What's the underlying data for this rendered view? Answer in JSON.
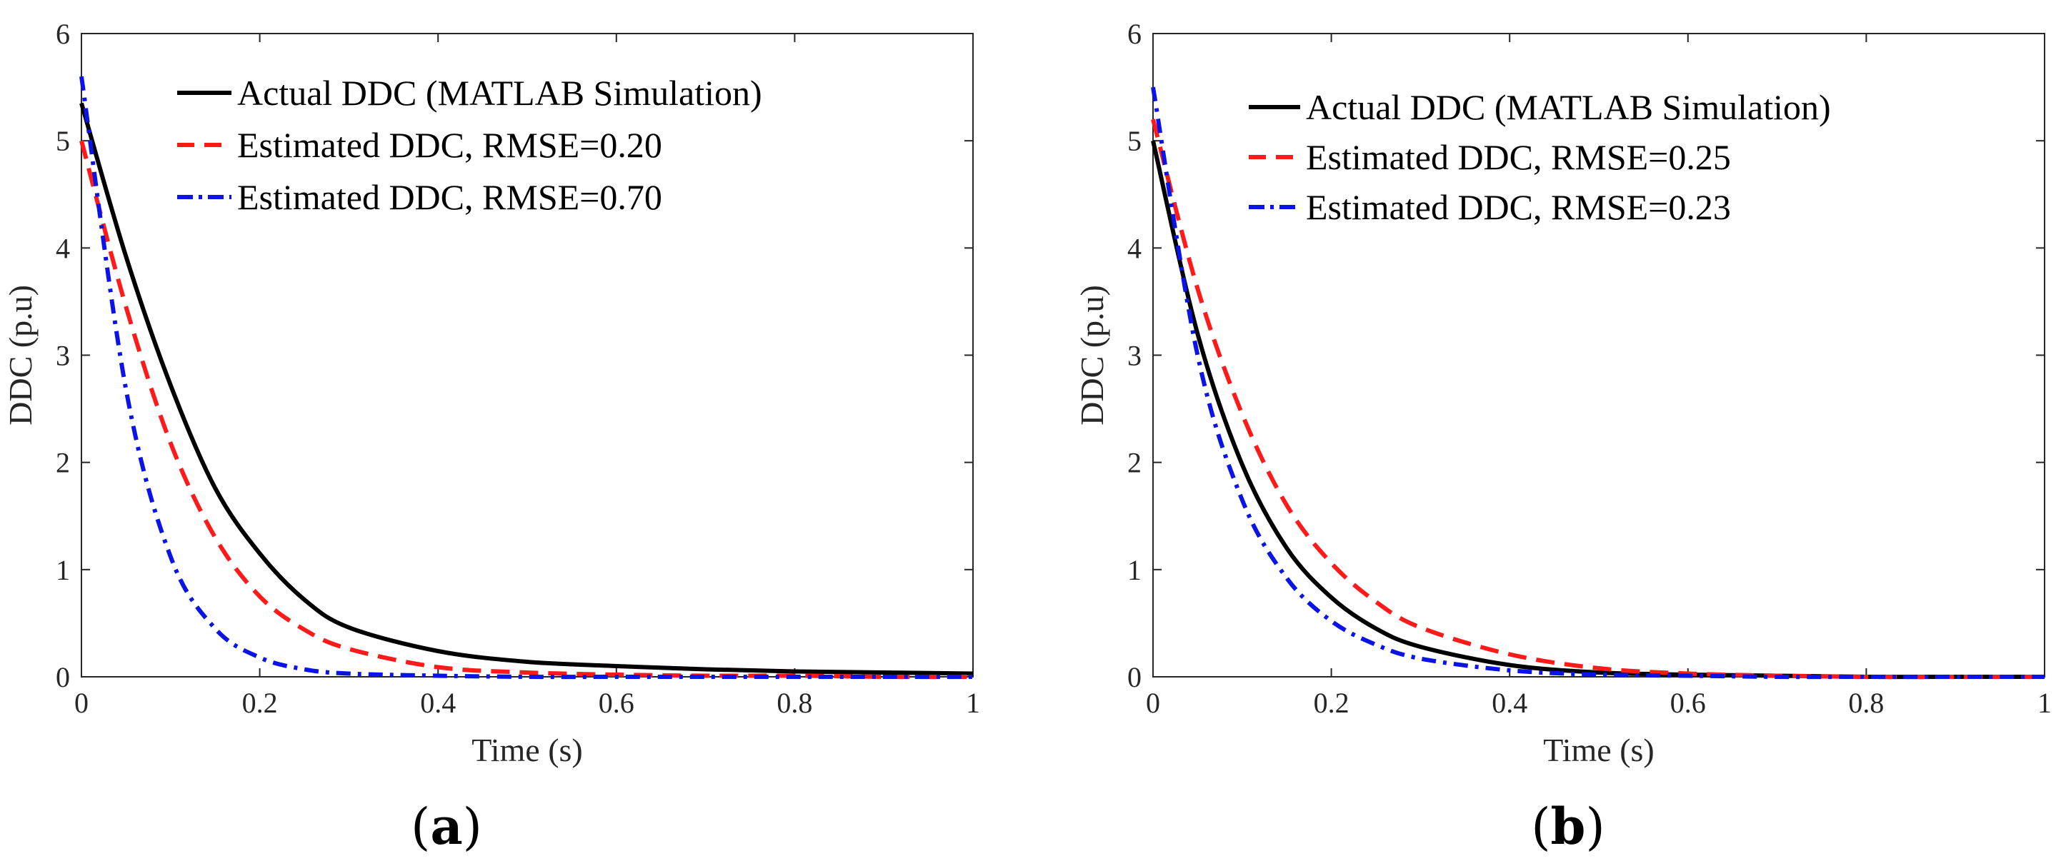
{
  "figure": {
    "panel_labels": [
      "(a)",
      "(b)"
    ],
    "label_parts": [
      {
        "open": "(",
        "letter": "a",
        "close": ")"
      },
      {
        "open": "(",
        "letter": "b",
        "close": ")"
      }
    ]
  },
  "colors": {
    "actual": "#000000",
    "estimated_red": "#ff1a1a",
    "estimated_blue": "#0a14e6",
    "axis": "#262626"
  },
  "chart_data": [
    {
      "type": "line",
      "panel": "(a)",
      "title": "",
      "xlabel": "Time (s)",
      "ylabel": "DDC (p.u)",
      "xlim": [
        0,
        1
      ],
      "ylim": [
        0,
        6
      ],
      "xticks": [
        "0",
        "0.2",
        "0.4",
        "0.6",
        "0.8",
        "1"
      ],
      "yticks": [
        "0",
        "1",
        "2",
        "3",
        "4",
        "5",
        "6"
      ],
      "legend_position": "top-right",
      "x": [
        0,
        0.05,
        0.1,
        0.15,
        0.2,
        0.25,
        0.3,
        0.4,
        0.5,
        0.6,
        0.7,
        0.8,
        0.9,
        1.0
      ],
      "series": [
        {
          "name": "Actual DDC (MATLAB Simulation)",
          "style": "solid",
          "color": "#000000",
          "values": [
            5.35,
            3.92,
            2.72,
            1.76,
            1.15,
            0.72,
            0.46,
            0.24,
            0.14,
            0.1,
            0.07,
            0.05,
            0.04,
            0.03
          ]
        },
        {
          "name": "Estimated DDC, RMSE=0.20",
          "style": "dashed",
          "color": "#ff1a1a",
          "values": [
            5.0,
            3.45,
            2.18,
            1.3,
            0.75,
            0.44,
            0.26,
            0.09,
            0.04,
            0.02,
            0.01,
            0.01,
            0.0,
            0.0
          ]
        },
        {
          "name": "Estimated DDC, RMSE=0.70",
          "style": "dashdot",
          "color": "#0a14e6",
          "values": [
            5.6,
            2.68,
            1.12,
            0.45,
            0.18,
            0.07,
            0.03,
            0.01,
            0.0,
            0.0,
            0.0,
            0.0,
            0.0,
            0.0
          ]
        }
      ]
    },
    {
      "type": "line",
      "panel": "(b)",
      "title": "",
      "xlabel": "Time (s)",
      "ylabel": "DDC (p.u)",
      "xlim": [
        0,
        1
      ],
      "ylim": [
        0,
        6
      ],
      "xticks": [
        "0",
        "0.2",
        "0.4",
        "0.6",
        "0.8",
        "1"
      ],
      "yticks": [
        "0",
        "1",
        "2",
        "3",
        "4",
        "5",
        "6"
      ],
      "legend_position": "top-right",
      "x": [
        0,
        0.05,
        0.1,
        0.15,
        0.2,
        0.25,
        0.3,
        0.4,
        0.5,
        0.6,
        0.7,
        0.8,
        0.9,
        1.0
      ],
      "series": [
        {
          "name": "Actual DDC (MATLAB Simulation)",
          "style": "solid",
          "color": "#000000",
          "values": [
            5.0,
            3.2,
            1.98,
            1.2,
            0.74,
            0.45,
            0.28,
            0.11,
            0.04,
            0.02,
            0.01,
            0.0,
            0.0,
            0.0
          ]
        },
        {
          "name": "Estimated DDC, RMSE=0.25",
          "style": "dashed",
          "color": "#ff1a1a",
          "values": [
            5.2,
            3.62,
            2.45,
            1.6,
            1.06,
            0.7,
            0.46,
            0.21,
            0.08,
            0.03,
            0.01,
            0.0,
            0.0,
            0.0
          ]
        },
        {
          "name": "Estimated DDC, RMSE=0.23",
          "style": "dashdot",
          "color": "#0a14e6",
          "values": [
            5.5,
            3.0,
            1.65,
            0.92,
            0.52,
            0.3,
            0.17,
            0.06,
            0.02,
            0.01,
            0.0,
            0.0,
            0.0,
            0.0
          ]
        }
      ]
    }
  ]
}
